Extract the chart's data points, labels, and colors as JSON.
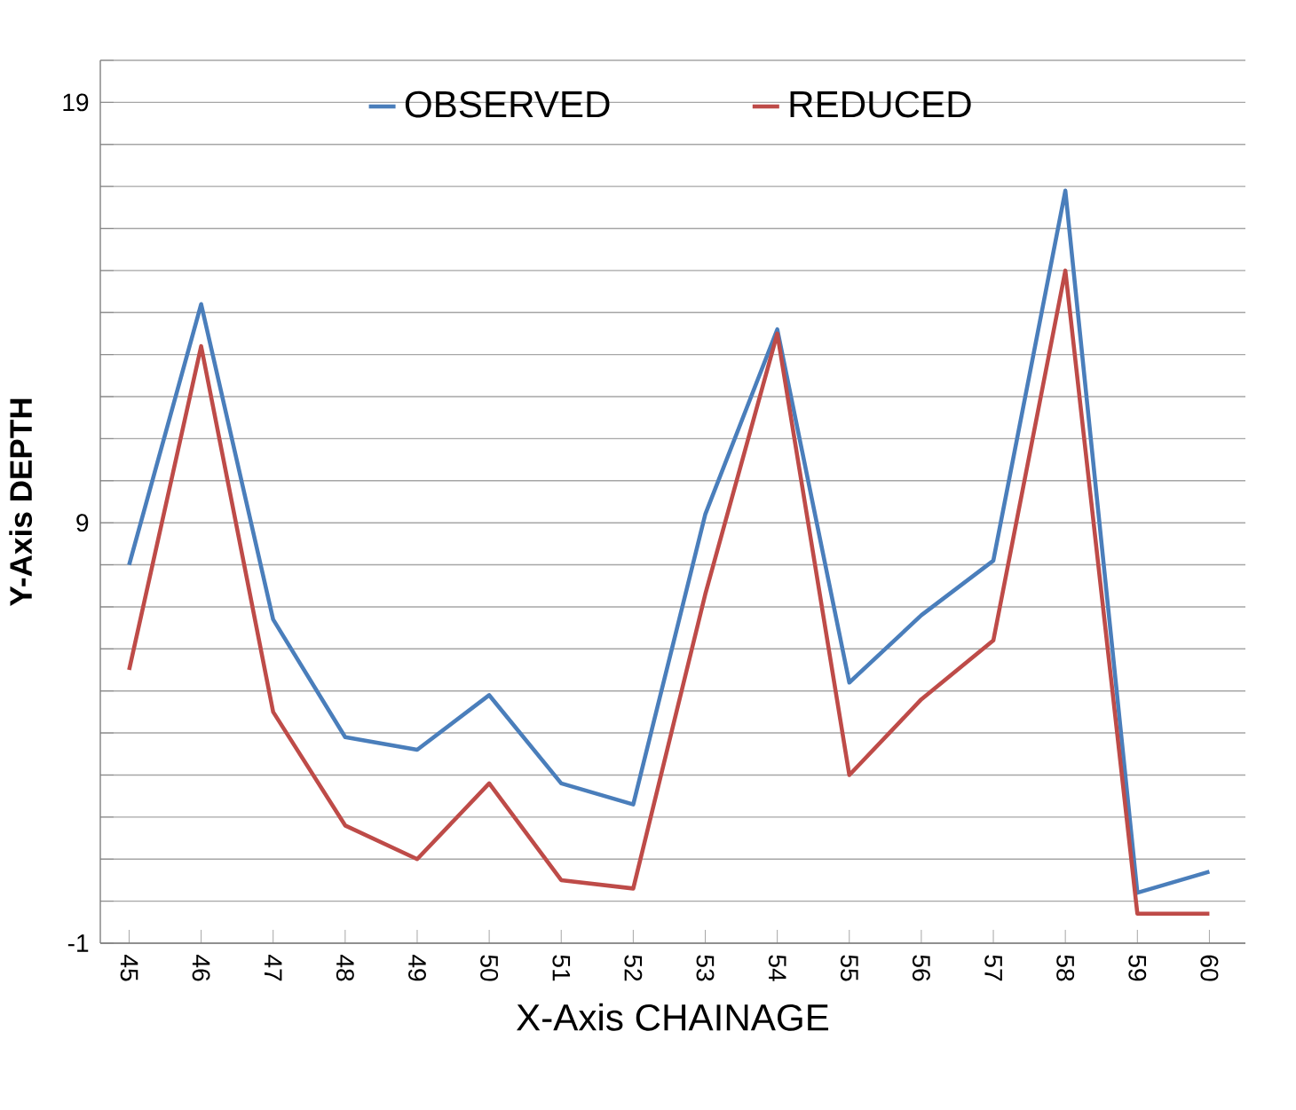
{
  "chart_data": {
    "type": "line",
    "xlabel": "X-Axis CHAINAGE",
    "ylabel": "Y-Axis  DEPTH",
    "categories": [
      "45",
      "46",
      "47",
      "48",
      "49",
      "50",
      "51",
      "52",
      "53",
      "54",
      "55",
      "56",
      "57",
      "58",
      "59",
      "60"
    ],
    "series": [
      {
        "name": "OBSERVED",
        "color": "#4a7ebb",
        "values": [
          8.0,
          14.2,
          6.7,
          3.9,
          3.6,
          4.9,
          2.8,
          2.3,
          9.2,
          13.6,
          5.2,
          6.8,
          8.1,
          16.9,
          0.2,
          0.7
        ]
      },
      {
        "name": "REDUCED",
        "color": "#be4b48",
        "values": [
          5.5,
          13.2,
          4.5,
          1.8,
          1.0,
          2.8,
          0.5,
          0.3,
          7.3,
          13.5,
          3.0,
          4.8,
          6.2,
          15.0,
          -0.3,
          -0.3
        ]
      }
    ],
    "ylim": [
      -1,
      20
    ],
    "yticks": [
      -1,
      {
        "value": 0,
        "label": null
      },
      {
        "value": 1,
        "label": null
      },
      {
        "value": 2,
        "label": null
      },
      {
        "value": 3,
        "label": null
      },
      {
        "value": 4,
        "label": null
      },
      {
        "value": 5,
        "label": null
      },
      {
        "value": 6,
        "label": null
      },
      {
        "value": 7,
        "label": null
      },
      {
        "value": 8,
        "label": null
      },
      9,
      {
        "value": 10,
        "label": null
      },
      {
        "value": 11,
        "label": null
      },
      {
        "value": 12,
        "label": null
      },
      {
        "value": 13,
        "label": null
      },
      {
        "value": 14,
        "label": null
      },
      {
        "value": 15,
        "label": null
      },
      {
        "value": 16,
        "label": null
      },
      {
        "value": 17,
        "label": null
      },
      {
        "value": 18,
        "label": null
      },
      19,
      {
        "value": 20,
        "label": null
      }
    ],
    "grid": "y",
    "legend": "top",
    "marker": "none",
    "line_style": "solid"
  }
}
